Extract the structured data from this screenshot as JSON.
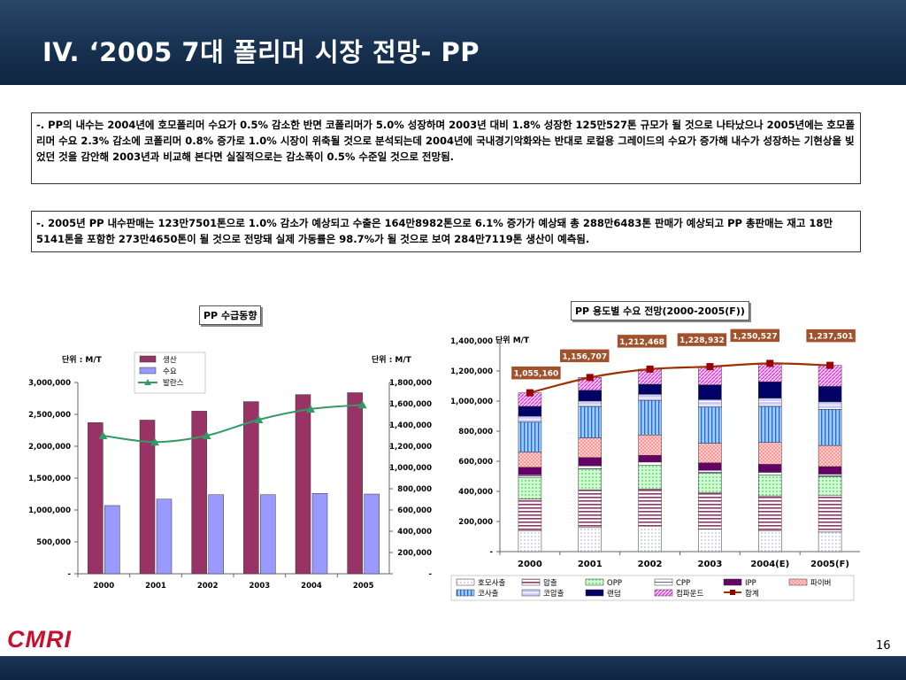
{
  "slide": {
    "title": "IV. ‘2005 7대 폴리머 시장 전망- PP",
    "page_number": "16",
    "logo": "CMRI"
  },
  "text_boxes": {
    "box1": "-. PP의 내수는 2004년에 호모폴리머 수요가 0.5% 감소한 반면 코폴리머가 5.0% 성장하며 2003년 대비 1.8% 성장한 125만527톤 규모가 될 것으로 나타났으나 2005년에는 호모폴리머 수요 2.3% 감소에 코폴리머 0.8% 증가로 1.0% 시장이 위축될 것으로 분석되는데 2004년에 국내경기악화와는 반대로 로컬용 그레이드의 수요가 증가해 내수가 성장하는 기현상을 빚었던 것을 감안해 2003년과 비교해 본다면 실질적으로는 감소폭이 0.5% 수준일 것으로 전망됨.",
    "box2": "-. 2005년 PP 내수판매는 123만7501톤으로 1.0% 감소가 예상되고 수출은 164만8982톤으로 6.1% 증가가 예상돼 총 288만6483톤 판매가 예상되고 PP 총판매는 재고 18만5141톤을 포함한 273만4650톤이 될 것으로 전망돼 실제 가동률은 98.7%가 될 것으로 보여 284만7119톤 생산이 예측됨."
  },
  "chart_data": [
    {
      "type": "bar",
      "title": "PP 수급동향",
      "left_unit": "단위 : M/T",
      "right_unit": "단위 : M/T",
      "categories": [
        "2000",
        "2001",
        "2002",
        "2003",
        "2004",
        "2005"
      ],
      "series": [
        {
          "name": "생산",
          "axis": "left",
          "kind": "bar",
          "color": "#993366",
          "values": [
            2370000,
            2410000,
            2550000,
            2700000,
            2810000,
            2840000
          ]
        },
        {
          "name": "수요",
          "axis": "left",
          "kind": "bar",
          "color": "#9999ff",
          "values": [
            1070000,
            1170000,
            1240000,
            1240000,
            1260000,
            1250000
          ]
        },
        {
          "name": "발란스",
          "axis": "right",
          "kind": "line",
          "color": "#339966",
          "values": [
            1300000,
            1240000,
            1300000,
            1450000,
            1550000,
            1590000
          ]
        }
      ],
      "left_axis": {
        "ylim": [
          0,
          3000000
        ],
        "ticks": [
          "-",
          "500,000",
          "1,000,000",
          "1,500,000",
          "2,000,000",
          "2,500,000",
          "3,000,000"
        ]
      },
      "right_axis": {
        "ylim": [
          0,
          1800000
        ],
        "ticks": [
          "-",
          "200,000",
          "400,000",
          "600,000",
          "800,000",
          "1,000,000",
          "1,200,000",
          "1,400,000",
          "1,600,000",
          "1,800,000"
        ]
      },
      "legend": "top-center"
    },
    {
      "type": "bar",
      "stacked": true,
      "title": "PP 용도별 수요 전망(2000-2005(F))",
      "unit": "단위 M/T",
      "categories": [
        "2000",
        "2001",
        "2002",
        "2003",
        "2004(E)",
        "2005(F)"
      ],
      "ylim": [
        0,
        1400000
      ],
      "ticks": [
        "-",
        "200,000",
        "400,000",
        "600,000",
        "800,000",
        "1,000,000",
        "1,200,000",
        "1,400,000"
      ],
      "series": [
        {
          "name": "호모사출",
          "values": [
            140000,
            160000,
            170000,
            150000,
            140000,
            130000
          ]
        },
        {
          "name": "압출",
          "values": [
            210000,
            250000,
            245000,
            240000,
            230000,
            245000
          ]
        },
        {
          "name": "OPP",
          "values": [
            140000,
            140000,
            160000,
            130000,
            140000,
            125000
          ]
        },
        {
          "name": "CPP",
          "values": [
            20000,
            20000,
            20000,
            20000,
            20000,
            15000
          ]
        },
        {
          "name": "IPP",
          "values": [
            50000,
            55000,
            45000,
            50000,
            50000,
            50000
          ]
        },
        {
          "name": "파이버",
          "values": [
            100000,
            130000,
            135000,
            130000,
            145000,
            140000
          ]
        },
        {
          "name": "코사출",
          "values": [
            200000,
            210000,
            230000,
            240000,
            240000,
            240000
          ]
        },
        {
          "name": "코압출",
          "values": [
            40000,
            35000,
            40000,
            50000,
            55000,
            50000
          ]
        },
        {
          "name": "랜덤",
          "values": [
            65000,
            72000,
            67000,
            98000,
            108000,
            102500
          ]
        },
        {
          "name": "컴파운드",
          "values": [
            90000,
            85000,
            100000,
            120000,
            122000,
            140000
          ]
        },
        {
          "name": "합계",
          "kind": "line",
          "values": [
            1055160,
            1156707,
            1212468,
            1228932,
            1250527,
            1237501
          ]
        }
      ],
      "data_labels": [
        "1,055,160",
        "1,156,707",
        "1,212,468",
        "1,228,932",
        "1,250,527",
        "1,237,501"
      ],
      "legend": "bottom"
    }
  ]
}
